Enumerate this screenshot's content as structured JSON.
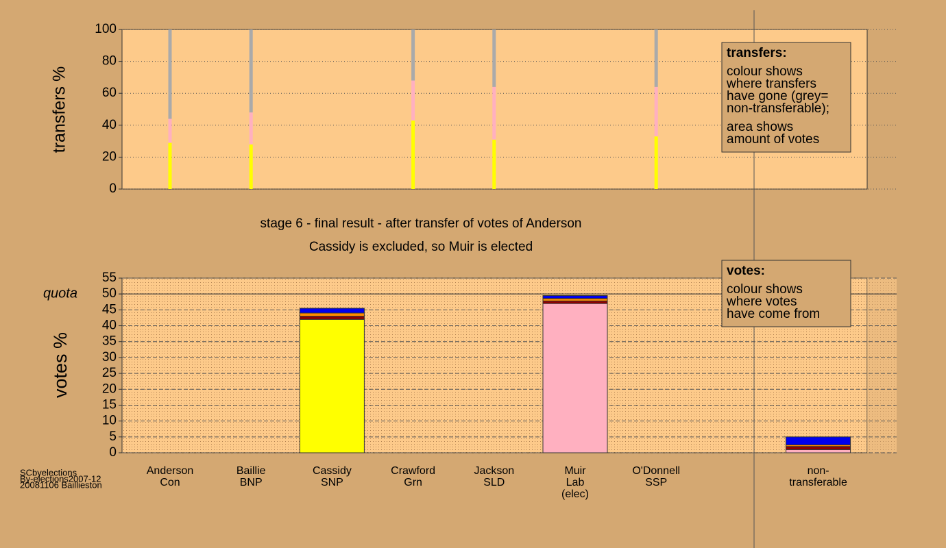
{
  "chart_data": [
    {
      "type": "bar",
      "ylabel": "transfers %",
      "ylim": [
        0,
        100
      ],
      "yticks": [
        0,
        20,
        40,
        60,
        80,
        100
      ],
      "grid": true,
      "series": [
        {
          "color": "#ffff00",
          "values": [
            29,
            28,
            null,
            43,
            31,
            null,
            33,
            null,
            null
          ]
        },
        {
          "color": "#ffb0c0",
          "values": [
            15,
            20,
            null,
            25,
            33,
            null,
            31,
            null,
            null
          ]
        },
        {
          "color": "#aaaaaa",
          "values": [
            56,
            52,
            null,
            32,
            36,
            null,
            36,
            null,
            null
          ]
        }
      ],
      "legend": {
        "title": "transfers:",
        "lines": [
          "colour shows",
          "where transfers",
          "have gone (grey=",
          "non-transferable);",
          "area shows",
          "amount of votes"
        ]
      }
    },
    {
      "type": "bar",
      "ylabel": "votes %",
      "ylim": [
        0,
        55
      ],
      "yticks": [
        0,
        5,
        10,
        15,
        20,
        25,
        30,
        35,
        40,
        45,
        50,
        55
      ],
      "grid": true,
      "title": "stage 6 - final result - after transfer of votes of Anderson",
      "subtitle": "Cassidy is excluded, so Muir is elected",
      "quota": {
        "label": "quota",
        "value": 50
      },
      "categories": [
        [
          "Anderson",
          "Con"
        ],
        [
          "Baillie",
          "BNP"
        ],
        [
          "Cassidy",
          "SNP"
        ],
        [
          "Crawford",
          "Grn"
        ],
        [
          "Jackson",
          "SLD"
        ],
        [
          "Muir",
          "Lab",
          "(elec)"
        ],
        [
          "O'Donnell",
          "SSP"
        ],
        null,
        [
          "non-",
          "transferable"
        ]
      ],
      "series": [
        {
          "color": "#ffff00",
          "values": [
            0,
            0,
            42,
            0,
            0,
            0,
            0,
            null,
            0
          ]
        },
        {
          "color": "#ffb0c0",
          "values": [
            0,
            0,
            0,
            0,
            0,
            47,
            0,
            null,
            1
          ]
        },
        {
          "color": "#900000",
          "values": [
            0,
            0,
            1,
            0,
            0,
            0.8,
            0,
            null,
            1
          ]
        },
        {
          "color": "#ff8c00",
          "values": [
            0,
            0,
            1,
            0,
            0,
            0.8,
            0,
            null,
            0.5
          ]
        },
        {
          "color": "#0000ee",
          "values": [
            0,
            0,
            1.5,
            0,
            0,
            0.9,
            0,
            null,
            2.5
          ]
        }
      ],
      "legend": {
        "title": "votes:",
        "lines": [
          "colour shows",
          "where votes",
          "have come from"
        ]
      }
    }
  ],
  "footer": [
    "SCbyelections",
    "By-elections2007-12",
    "20081106 Baillieston"
  ]
}
